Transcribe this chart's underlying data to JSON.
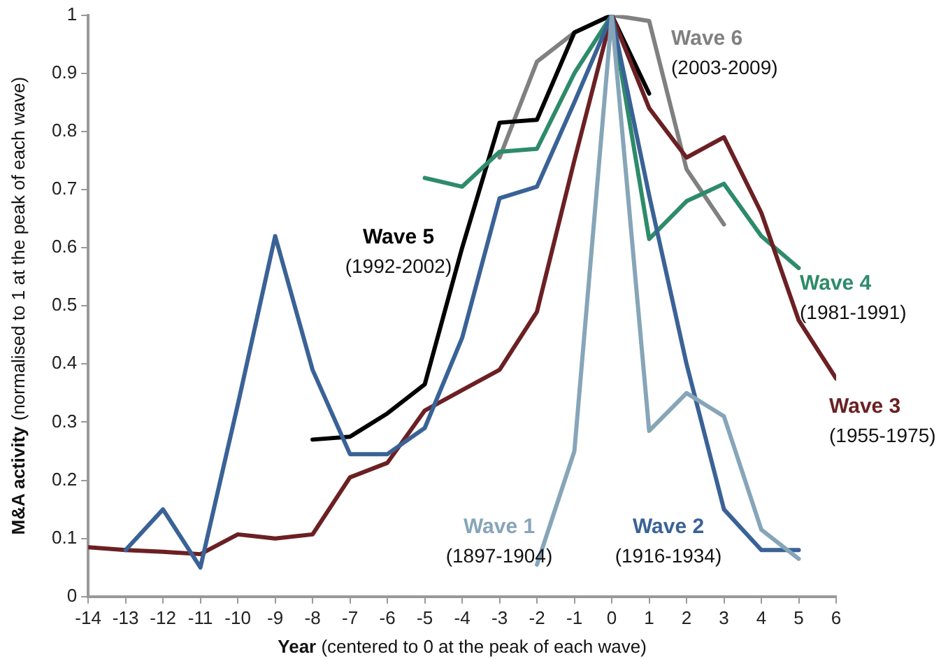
{
  "chart_data": {
    "type": "line",
    "xlabel": "Year (centered to 0 at the peak of each wave)",
    "ylabel": "M&A activity (normalised to 1 at the peak of each wave)",
    "xlim": [
      -14,
      6
    ],
    "xticks": [
      -14,
      -13,
      -12,
      -11,
      -10,
      -9,
      -8,
      -7,
      -6,
      -5,
      -4,
      -3,
      -2,
      -1,
      0,
      1,
      2,
      3,
      4,
      5,
      6
    ],
    "ylim": [
      0,
      1
    ],
    "yticks": [
      0,
      0.1,
      0.2,
      0.3,
      0.4,
      0.5,
      0.6,
      0.7,
      0.8,
      0.9,
      1
    ],
    "grid": false,
    "legend": false,
    "marker": "none",
    "line_style": "solid",
    "series": [
      {
        "name": "Wave 1 (1897-1904)",
        "color": "#86a5b8",
        "x": [
          -2,
          -1,
          0,
          1,
          2,
          3,
          4,
          5
        ],
        "values": [
          0.055,
          0.25,
          1,
          0.285,
          0.35,
          0.31,
          0.115,
          0.065
        ]
      },
      {
        "name": "Wave 2 (1916-1934)",
        "color": "#3a6296",
        "x": [
          -13,
          -12,
          -11,
          -10,
          -9,
          -8,
          -7,
          -6,
          -5,
          -4,
          -3,
          -2,
          -1,
          0,
          1,
          2,
          3,
          4,
          5
        ],
        "values": [
          0.08,
          0.15,
          0.05,
          0.33,
          0.62,
          0.39,
          0.245,
          0.245,
          0.29,
          0.445,
          0.685,
          0.705,
          0.85,
          1,
          0.69,
          0.4,
          0.15,
          0.08,
          0.08
        ]
      },
      {
        "name": "Wave 3 (1955-1975)",
        "color": "#6b2023",
        "x": [
          -14,
          -13,
          -12,
          -11,
          -10,
          -9,
          -8,
          -7,
          -6,
          -5,
          -4,
          -3,
          -2,
          -1,
          0,
          1,
          2,
          3,
          4,
          5,
          6
        ],
        "values": [
          0.085,
          0.08,
          0.077,
          0.073,
          0.107,
          0.1,
          0.107,
          0.205,
          0.23,
          0.32,
          0.355,
          0.39,
          0.49,
          0.75,
          1,
          0.84,
          0.755,
          0.79,
          0.66,
          0.475,
          0.375
        ]
      },
      {
        "name": "Wave 4 (1981-1991)",
        "color": "#2e8b6a",
        "x": [
          -5,
          -4,
          -3,
          -2,
          -1,
          0,
          1,
          2,
          3,
          4,
          5
        ],
        "values": [
          0.72,
          0.705,
          0.765,
          0.77,
          0.9,
          1,
          0.615,
          0.68,
          0.71,
          0.62,
          0.565
        ]
      },
      {
        "name": "Wave 5 (1992-2002)",
        "color": "#000000",
        "x": [
          -8,
          -7,
          -6,
          -5,
          -4,
          -3,
          -2,
          -1,
          0,
          1
        ],
        "values": [
          0.27,
          0.275,
          0.315,
          0.365,
          0.6,
          0.815,
          0.82,
          0.97,
          1,
          0.865
        ]
      },
      {
        "name": "Wave 6 (2003-2009)",
        "color": "#808080",
        "x": [
          -3,
          -2,
          -1,
          0,
          1,
          2,
          3
        ],
        "values": [
          0.755,
          0.92,
          0.97,
          1,
          0.99,
          0.735,
          0.64
        ]
      }
    ]
  }
}
